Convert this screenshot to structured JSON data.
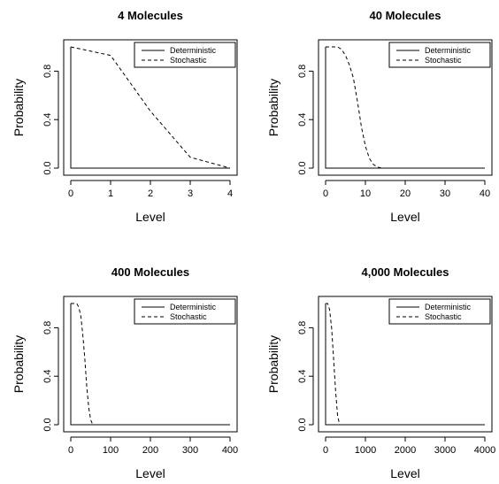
{
  "chart_data": [
    {
      "type": "line",
      "title": "4 Molecules",
      "xlabel": "Level",
      "ylabel": "Probability",
      "xlim": [
        0,
        4
      ],
      "ylim": [
        0,
        1
      ],
      "xticks": [
        "0",
        "1",
        "2",
        "3",
        "4"
      ],
      "yticks": [
        "0.0",
        "0.4",
        "0.8"
      ],
      "legend": {
        "position": "top-right",
        "entries": [
          "Deterministic",
          "Stochastic"
        ]
      },
      "series": [
        {
          "name": "Deterministic",
          "style": "solid",
          "x": [
            0,
            0,
            4
          ],
          "y": [
            1,
            0,
            0
          ]
        },
        {
          "name": "Stochastic",
          "style": "dashed",
          "x": [
            0,
            1,
            2,
            3,
            4
          ],
          "y": [
            1.0,
            0.93,
            0.47,
            0.09,
            0.0
          ]
        }
      ]
    },
    {
      "type": "line",
      "title": "40 Molecules",
      "xlabel": "Level",
      "ylabel": "Probability",
      "xlim": [
        0,
        40
      ],
      "ylim": [
        0,
        1
      ],
      "xticks": [
        "0",
        "10",
        "20",
        "30",
        "40"
      ],
      "yticks": [
        "0.0",
        "0.4",
        "0.8"
      ],
      "legend": {
        "position": "top-right",
        "entries": [
          "Deterministic",
          "Stochastic"
        ]
      },
      "series": [
        {
          "name": "Deterministic",
          "style": "solid",
          "x": [
            0,
            0,
            40
          ],
          "y": [
            1,
            0,
            0
          ]
        },
        {
          "name": "Stochastic",
          "style": "dashed",
          "x": [
            0,
            2,
            3,
            4,
            5,
            6,
            7,
            8,
            9,
            10,
            11,
            12,
            13,
            14,
            16,
            40
          ],
          "y": [
            1.0,
            1.0,
            1.0,
            0.98,
            0.93,
            0.85,
            0.74,
            0.55,
            0.34,
            0.18,
            0.08,
            0.03,
            0.01,
            0.0,
            0.0,
            0.0
          ]
        }
      ]
    },
    {
      "type": "line",
      "title": "400 Molecules",
      "xlabel": "Level",
      "ylabel": "Probability",
      "xlim": [
        0,
        400
      ],
      "ylim": [
        0,
        1
      ],
      "xticks": [
        "0",
        "100",
        "200",
        "300",
        "400"
      ],
      "yticks": [
        "0.0",
        "0.4",
        "0.8"
      ],
      "legend": {
        "position": "top-right",
        "entries": [
          "Deterministic",
          "Stochastic"
        ]
      },
      "series": [
        {
          "name": "Deterministic",
          "style": "solid",
          "x": [
            0,
            0,
            400
          ],
          "y": [
            1,
            0,
            0
          ]
        },
        {
          "name": "Stochastic",
          "style": "dashed",
          "x": [
            0,
            15,
            20,
            25,
            30,
            35,
            40,
            45,
            50,
            55,
            60,
            400
          ],
          "y": [
            1.0,
            1.0,
            0.97,
            0.9,
            0.75,
            0.55,
            0.32,
            0.14,
            0.04,
            0.0,
            0.0,
            0.0
          ]
        }
      ]
    },
    {
      "type": "line",
      "title": "4,000 Molecules",
      "xlabel": "Level",
      "ylabel": "Probability",
      "xlim": [
        0,
        4000
      ],
      "ylim": [
        0,
        1
      ],
      "xticks": [
        "0",
        "1000",
        "2000",
        "3000",
        "4000"
      ],
      "yticks": [
        "0.0",
        "0.4",
        "0.8"
      ],
      "legend": {
        "position": "top-right",
        "entries": [
          "Deterministic",
          "Stochastic"
        ]
      },
      "series": [
        {
          "name": "Deterministic",
          "style": "solid",
          "x": [
            0,
            0,
            4000
          ],
          "y": [
            1,
            0,
            0
          ]
        },
        {
          "name": "Stochastic",
          "style": "dashed",
          "x": [
            0,
            50,
            100,
            150,
            200,
            250,
            300,
            350,
            4000
          ],
          "y": [
            1.0,
            1.0,
            0.95,
            0.8,
            0.55,
            0.28,
            0.08,
            0.0,
            0.0
          ]
        }
      ]
    }
  ]
}
